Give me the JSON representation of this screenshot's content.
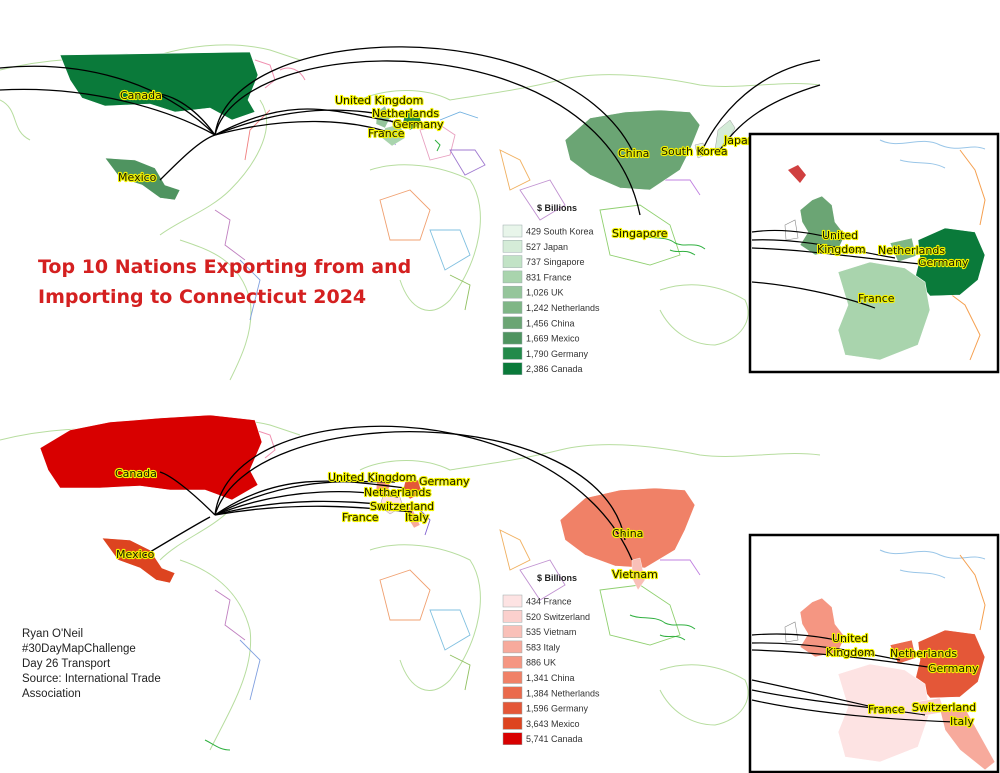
{
  "title_lines": [
    "Top 10 Nations Exporting from and",
    "Importing to Connecticut 2024"
  ],
  "colors": {
    "exports_scale": [
      "#e8f5ea",
      "#d5ecd8",
      "#c2e3c6",
      "#a9d4ad",
      "#95c59b",
      "#7fb686",
      "#6ba574",
      "#4f9460",
      "#238a4a",
      "#0a7a3a"
    ],
    "imports_scale": [
      "#fde3e3",
      "#fbd0cd",
      "#f9c0b8",
      "#f7aa9c",
      "#f59682",
      "#f08167",
      "#ea6a4c",
      "#e45738",
      "#dd4420",
      "#d80000"
    ],
    "arrow": "#000000",
    "label_halo": "#f2f200",
    "title": "#d42020"
  },
  "exports": {
    "legend_title": "$ Billions",
    "legend": [
      {
        "value": "429",
        "country": "South Korea"
      },
      {
        "value": "527",
        "country": "Japan"
      },
      {
        "value": "737",
        "country": "Singapore"
      },
      {
        "value": "831",
        "country": "France"
      },
      {
        "value": "1,026",
        "country": "UK"
      },
      {
        "value": "1,242",
        "country": "Netherlands"
      },
      {
        "value": "1,456",
        "country": "China"
      },
      {
        "value": "1,669",
        "country": "Mexico"
      },
      {
        "value": "1,790",
        "country": "Germany"
      },
      {
        "value": "2,386",
        "country": "Canada"
      }
    ],
    "map_labels": [
      "Canada",
      "Mexico",
      "United Kingdom",
      "Netherlands",
      "Germany",
      "France",
      "China",
      "South Korea",
      "Japan",
      "Singapore"
    ],
    "inset_labels": [
      "United",
      "Kingdom",
      "Netherlands",
      "Germany",
      "France"
    ]
  },
  "imports": {
    "legend_title": "$ Billions",
    "legend": [
      {
        "value": "434",
        "country": "France"
      },
      {
        "value": "520",
        "country": "Switzerland"
      },
      {
        "value": "535",
        "country": "Vietnam"
      },
      {
        "value": "583",
        "country": "Italy"
      },
      {
        "value": "886",
        "country": "UK"
      },
      {
        "value": "1,341",
        "country": "China"
      },
      {
        "value": "1,384",
        "country": "Netherlands"
      },
      {
        "value": "1,596",
        "country": "Germany"
      },
      {
        "value": "3,643",
        "country": "Mexico"
      },
      {
        "value": "5,741",
        "country": "Canada"
      }
    ],
    "map_labels": [
      "Canada",
      "Mexico",
      "United Kingdom",
      "Germany",
      "Netherlands",
      "Switzerland",
      "France",
      "Italy",
      "China",
      "Vietnam"
    ],
    "inset_labels": [
      "United",
      "Kingdom",
      "Netherlands",
      "Germany",
      "France",
      "Switzerland",
      "Italy"
    ]
  },
  "credits": [
    "Ryan O'Neil",
    "#30DayMapChallenge",
    "Day 26 Transport",
    "Source: International Trade",
    "Association"
  ]
}
